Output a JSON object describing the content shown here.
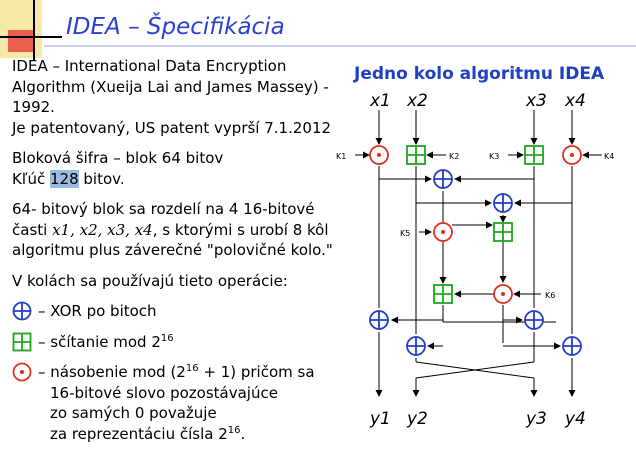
{
  "title": "IDEA – Špecifikácia",
  "left": {
    "intro_line1": "IDEA – International Data Encryption",
    "intro_line2": "Algorithm (Xueija Lai and James Massey) -",
    "intro_line3": "1992.",
    "intro_line4": "Je patentovaný, US patent vyprší 7.1.2012",
    "block_line1": "Bloková šifra – blok 64 bitov",
    "key_prefix": "Kľúč ",
    "key_value": "128",
    "key_suffix": " bitov.",
    "split_line1": "64- bitový blok sa rozdelí na 4 16-bitové",
    "split_line2_a": "časti ",
    "split_vars": "x1, x2, x3, x4",
    "split_line2_b": ", s ktorými s urobí 8 kôl",
    "split_line3": "algoritmu plus záverečné \"polovičné kolo.\"",
    "ops_intro": "V kolách sa používajú tieto operácie:",
    "op_xor": "– XOR po bitoch",
    "op_add_text": "– sčítanie   mod 2",
    "op_add_exp": "16",
    "op_mul_line1_a": "– násobenie   mod (2",
    "op_mul_exp1": "16",
    "op_mul_line1_b": " + 1) pričom sa",
    "op_mul_line2": "16-bitové slovo pozostávajúce",
    "op_mul_line3": "zo samých 0 považuje",
    "op_mul_line4_a": "za reprezentáciu čísla 2",
    "op_mul_exp2": "16",
    "op_mul_line4_b": "."
  },
  "diagram": {
    "title": "Jedno kolo algoritmu IDEA",
    "inputs": [
      "x1",
      "x2",
      "x3",
      "x4"
    ],
    "outputs": [
      "y1",
      "y2",
      "y3",
      "y4"
    ],
    "keys": [
      "K1",
      "K2",
      "K3",
      "K4",
      "K5",
      "K6"
    ]
  },
  "colors": {
    "title_blue": "#2a3fd1",
    "xor_blue": "#1f3fc4",
    "add_green": "#1fa51f",
    "mul_red": "#e03020",
    "highlight": "#9bbbe0"
  }
}
